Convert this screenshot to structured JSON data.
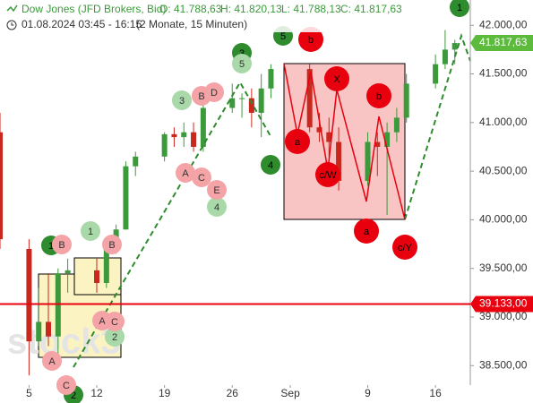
{
  "chart_data": {
    "type": "candlestick",
    "title": "Dow Jones (JFD Brokers, Bid)",
    "ohlc_header": [
      "O: 41.788,63",
      "H: 41.820,13",
      "L: 41.788,13",
      "C: 41.817,63"
    ],
    "subtitle": "01.08.2024 03:45 - 16:15",
    "period": "(2 Monate, 15 Minuten)",
    "watermark": "stock3",
    "x": [
      2,
      5,
      6,
      7,
      8,
      9,
      12,
      13,
      14,
      15,
      16,
      19,
      20,
      21,
      22,
      23,
      26,
      27,
      28,
      29,
      30,
      34,
      35,
      36,
      37,
      40,
      41,
      42,
      43,
      44,
      47,
      48,
      49
    ],
    "open": [
      40900,
      39700,
      38750,
      38950,
      38800,
      39450,
      39480,
      39350,
      39750,
      39900,
      40550,
      40650,
      40880,
      40850,
      40900,
      40750,
      41150,
      41250,
      41250,
      41100,
      41350,
      41550,
      40950,
      40900,
      40800,
      40400,
      40800,
      40750,
      40900,
      41050,
      41400,
      41600,
      41750
    ],
    "high": [
      41100,
      39800,
      39300,
      39450,
      39500,
      39600,
      39600,
      39800,
      39950,
      40600,
      40700,
      40900,
      40950,
      41000,
      41000,
      41200,
      41400,
      41300,
      41350,
      41500,
      41600,
      41600,
      41100,
      41050,
      40950,
      40900,
      40900,
      41000,
      41150,
      41500,
      41700,
      41950,
      41850
    ],
    "low": [
      39700,
      38400,
      38700,
      38700,
      38500,
      39250,
      39250,
      39300,
      39650,
      39900,
      40450,
      40600,
      40750,
      40750,
      40700,
      40700,
      41100,
      41050,
      40950,
      40850,
      41250,
      40900,
      40800,
      40650,
      40300,
      40350,
      40450,
      40050,
      40800,
      41000,
      41350,
      41550,
      41600
    ],
    "close": [
      39800,
      38750,
      38950,
      38800,
      39450,
      39480,
      39350,
      39750,
      39900,
      40550,
      40650,
      40880,
      40850,
      40900,
      40750,
      41150,
      41250,
      41250,
      41100,
      41350,
      41550,
      40950,
      40900,
      40800,
      40400,
      40800,
      40750,
      40900,
      41050,
      41400,
      41600,
      41750,
      41817.63
    ],
    "up_color": "#3c9a3c",
    "down_color": "#c8281e",
    "xlim": [
      2,
      50.6
    ],
    "xticks": [
      5,
      12,
      19,
      26,
      {
        "value": 32,
        "label": "Sep"
      },
      {
        "value": 40,
        "label": "9"
      },
      {
        "value": 47,
        "label": "16"
      }
    ],
    "ylim": [
      38300,
      42260
    ],
    "yticks": [
      {
        "value": 38500,
        "label": "38.500,00"
      },
      {
        "value": 39000,
        "label": "39.000,00"
      },
      {
        "value": 39500,
        "label": "39.500,00"
      },
      {
        "value": 40000,
        "label": "40.000,00"
      },
      {
        "value": 40500,
        "label": "40.500,00"
      },
      {
        "value": 41000,
        "label": "41.000,00"
      },
      {
        "value": 41500,
        "label": "41.500,00"
      },
      {
        "value": 42000,
        "label": "42.000,00"
      }
    ],
    "price_tag": {
      "value": 41817.63,
      "label": "41.817,63"
    },
    "level_line": {
      "value": 39133,
      "label": "39.133,00"
    },
    "annotations": [
      {
        "text": "1",
        "style": "wave"
      },
      {
        "text": "5",
        "style": "wave"
      },
      {
        "text": "3",
        "style": "wave"
      },
      {
        "text": "4",
        "style": "wave"
      },
      {
        "text": "1",
        "style": "wave"
      },
      {
        "text": "2",
        "style": "wave"
      },
      {
        "text": "5",
        "style": "subwave"
      },
      {
        "text": "3",
        "style": "subwave"
      },
      {
        "text": "1",
        "style": "subwave"
      },
      {
        "text": "4",
        "style": "subwave"
      },
      {
        "text": "2",
        "style": "subwave"
      },
      {
        "text": "B",
        "style": "minor"
      },
      {
        "text": "D",
        "style": "minor"
      },
      {
        "text": "A",
        "style": "minor"
      },
      {
        "text": "C",
        "style": "minor"
      },
      {
        "text": "E",
        "style": "minor"
      },
      {
        "text": "B",
        "style": "minor"
      },
      {
        "text": "B",
        "style": "minor"
      },
      {
        "text": "A",
        "style": "minor"
      },
      {
        "text": "C",
        "style": "minor"
      },
      {
        "text": "A",
        "style": "minor"
      },
      {
        "text": "C",
        "style": "minor"
      },
      {
        "text": "b",
        "style": "corrective"
      },
      {
        "text": "X",
        "style": "corrective"
      },
      {
        "text": "b",
        "style": "corrective"
      },
      {
        "text": "a",
        "style": "corrective"
      },
      {
        "text": "c/W",
        "style": "corrective"
      },
      {
        "text": "a",
        "style": "corrective"
      },
      {
        "text": "c/Y",
        "style": "corrective"
      }
    ]
  }
}
